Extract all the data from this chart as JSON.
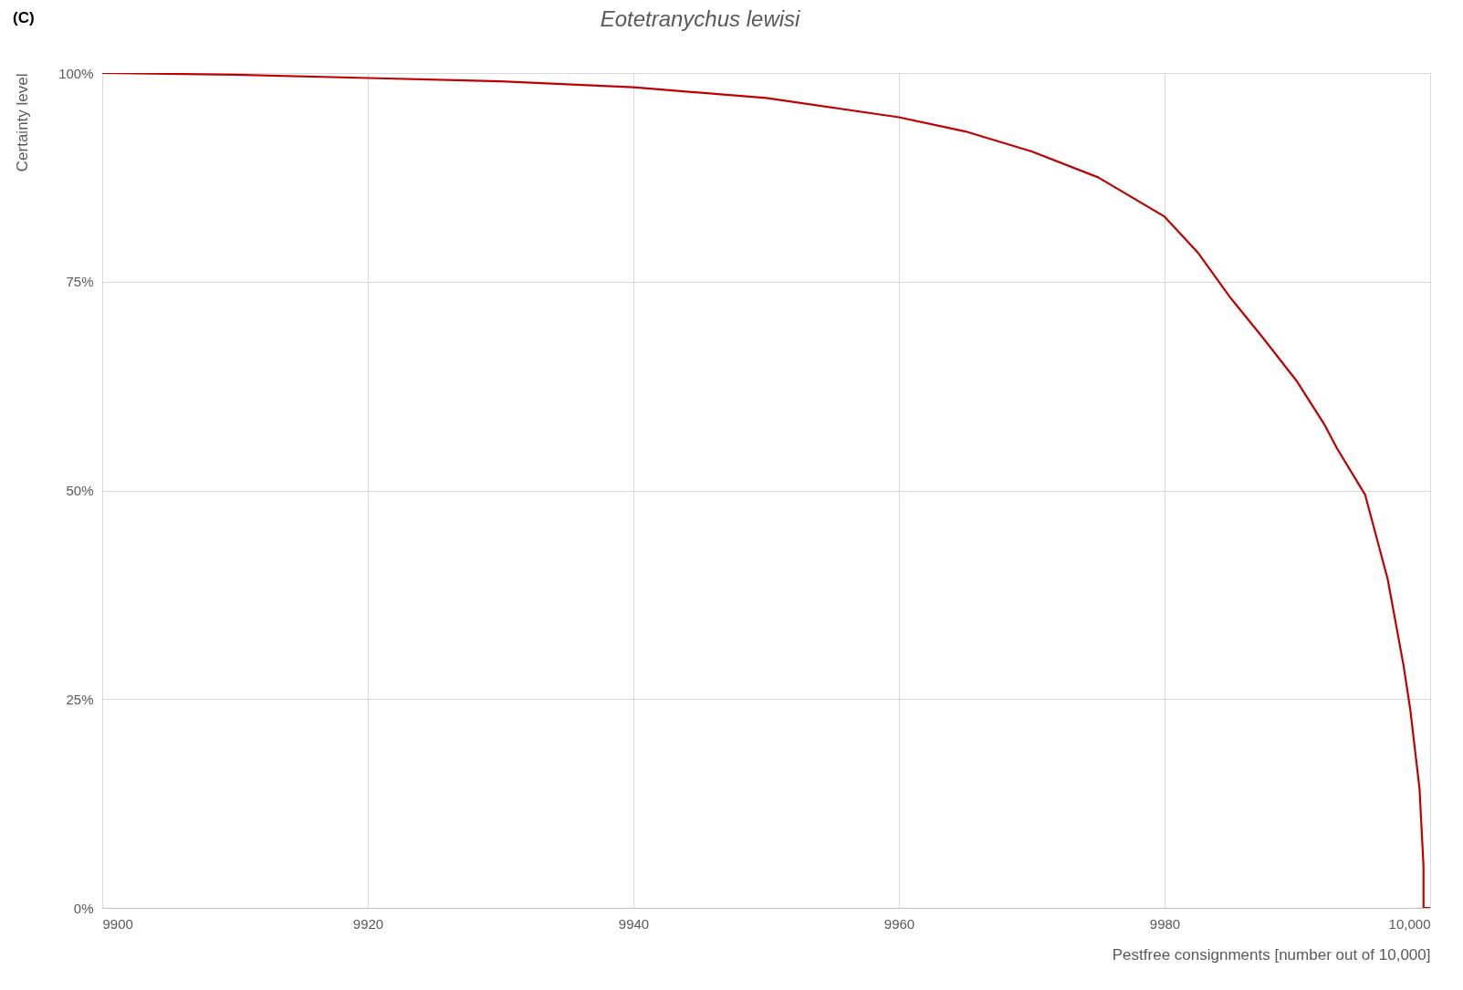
{
  "chart_data": {
    "type": "line",
    "title": "Eotetranychus lewisi",
    "xlabel": "Pestfree consignments [number out of 10,000]",
    "ylabel": "Certainty level",
    "annotations": [
      "(C)"
    ],
    "x": [
      9900,
      9910,
      9920,
      9930,
      9940,
      9950,
      9960,
      9965,
      9970,
      9975,
      9980,
      9982.5,
      9985,
      9987.3,
      9990,
      9992,
      9993,
      9995.1,
      9996.8,
      9998,
      9998.5,
      9999.2,
      9999.5,
      9999.5,
      10000
    ],
    "series": [
      {
        "color": "#c00000",
        "values": [
          100,
          99.8,
          99.4,
          99.0,
          98.3,
          97.0,
          94.7,
          93.0,
          90.6,
          87.5,
          82.8,
          78.5,
          73,
          68.5,
          63,
          58,
          55,
          49.5,
          39.4,
          29,
          23.8,
          14.3,
          5,
          0,
          0
        ]
      }
    ],
    "xlim": [
      9900,
      10000
    ],
    "ylim": [
      0,
      100
    ],
    "xticks": [
      9900,
      9920,
      9940,
      9960,
      9980,
      {
        "value": 10000,
        "label": "10,000"
      }
    ],
    "yticks": [
      {
        "value": 0,
        "label": "0%"
      },
      {
        "value": 25,
        "label": "25%"
      },
      {
        "value": 50,
        "label": "50%"
      },
      {
        "value": 75,
        "label": "75%"
      },
      {
        "value": 100,
        "label": "100%"
      }
    ],
    "grid": true,
    "marker": "none",
    "line_style": "solid"
  }
}
